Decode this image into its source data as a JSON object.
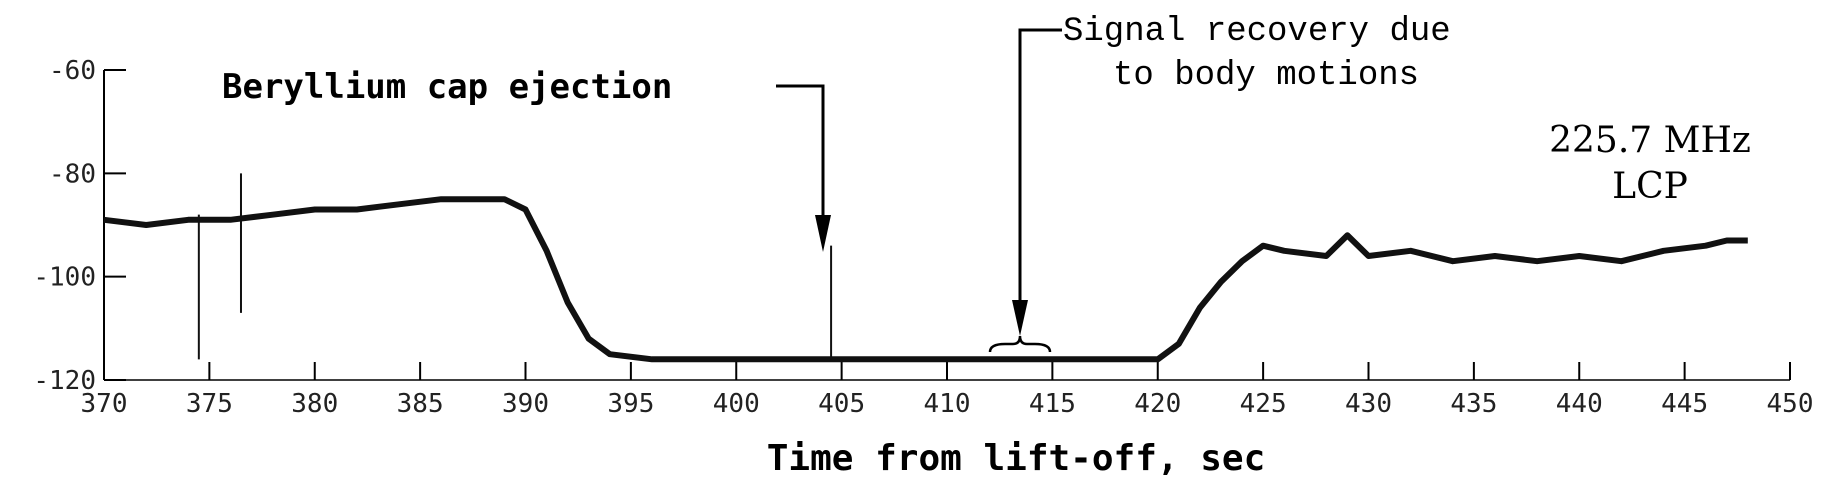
{
  "chart_data": {
    "type": "line",
    "title": "",
    "xlabel": "Time from lift-off, sec",
    "ylabel": "",
    "xlim": [
      370,
      450
    ],
    "ylim": [
      -120,
      -60
    ],
    "x_ticks": [
      370,
      375,
      380,
      385,
      390,
      395,
      400,
      405,
      410,
      415,
      420,
      425,
      430,
      435,
      440,
      445,
      450
    ],
    "x_tick_labels": [
      "370",
      "375",
      "380",
      "385",
      "390",
      "395",
      "400",
      "405",
      "410",
      "415",
      "420",
      "425",
      "430",
      "435",
      "440",
      "445",
      "450"
    ],
    "y_ticks": [
      -60,
      -80,
      -100,
      -120
    ],
    "y_tick_labels": [
      "-60",
      "-80",
      "-100",
      "-120"
    ],
    "grid": false,
    "series": [
      {
        "x": [
          370,
          372,
          374,
          376,
          378,
          380,
          382,
          384,
          386,
          388,
          389,
          390,
          391,
          392,
          393,
          394,
          396,
          400,
          404,
          408,
          412,
          416,
          420,
          421,
          422,
          423,
          424,
          425,
          426,
          428,
          429,
          430,
          432,
          434,
          436,
          438,
          440,
          442,
          444,
          446,
          447,
          448
        ],
        "values": [
          -89,
          -90,
          -89,
          -89,
          -88,
          -87,
          -87,
          -86,
          -85,
          -85,
          -85,
          -87,
          -95,
          -105,
          -112,
          -115,
          -116,
          -116,
          -116,
          -116,
          -116,
          -116,
          -116,
          -113,
          -106,
          -101,
          -97,
          -94,
          -95,
          -96,
          -92,
          -96,
          -95,
          -97,
          -96,
          -97,
          -96,
          -97,
          -95,
          -94,
          -93,
          -93
        ]
      }
    ],
    "spikes": [
      {
        "x": 374.5,
        "values": [
          -116,
          -88
        ]
      },
      {
        "x": 376.5,
        "values": [
          -107,
          -80
        ]
      },
      {
        "x": 404.5,
        "values": [
          -116,
          -94
        ]
      }
    ],
    "annotations": {
      "beryllium": "Beryllium cap ejection",
      "signal_recovery_line1": "Signal recovery due",
      "signal_recovery_line2": "to body motions",
      "frequency": "225.7 MHz",
      "polarization": "LCP"
    }
  }
}
